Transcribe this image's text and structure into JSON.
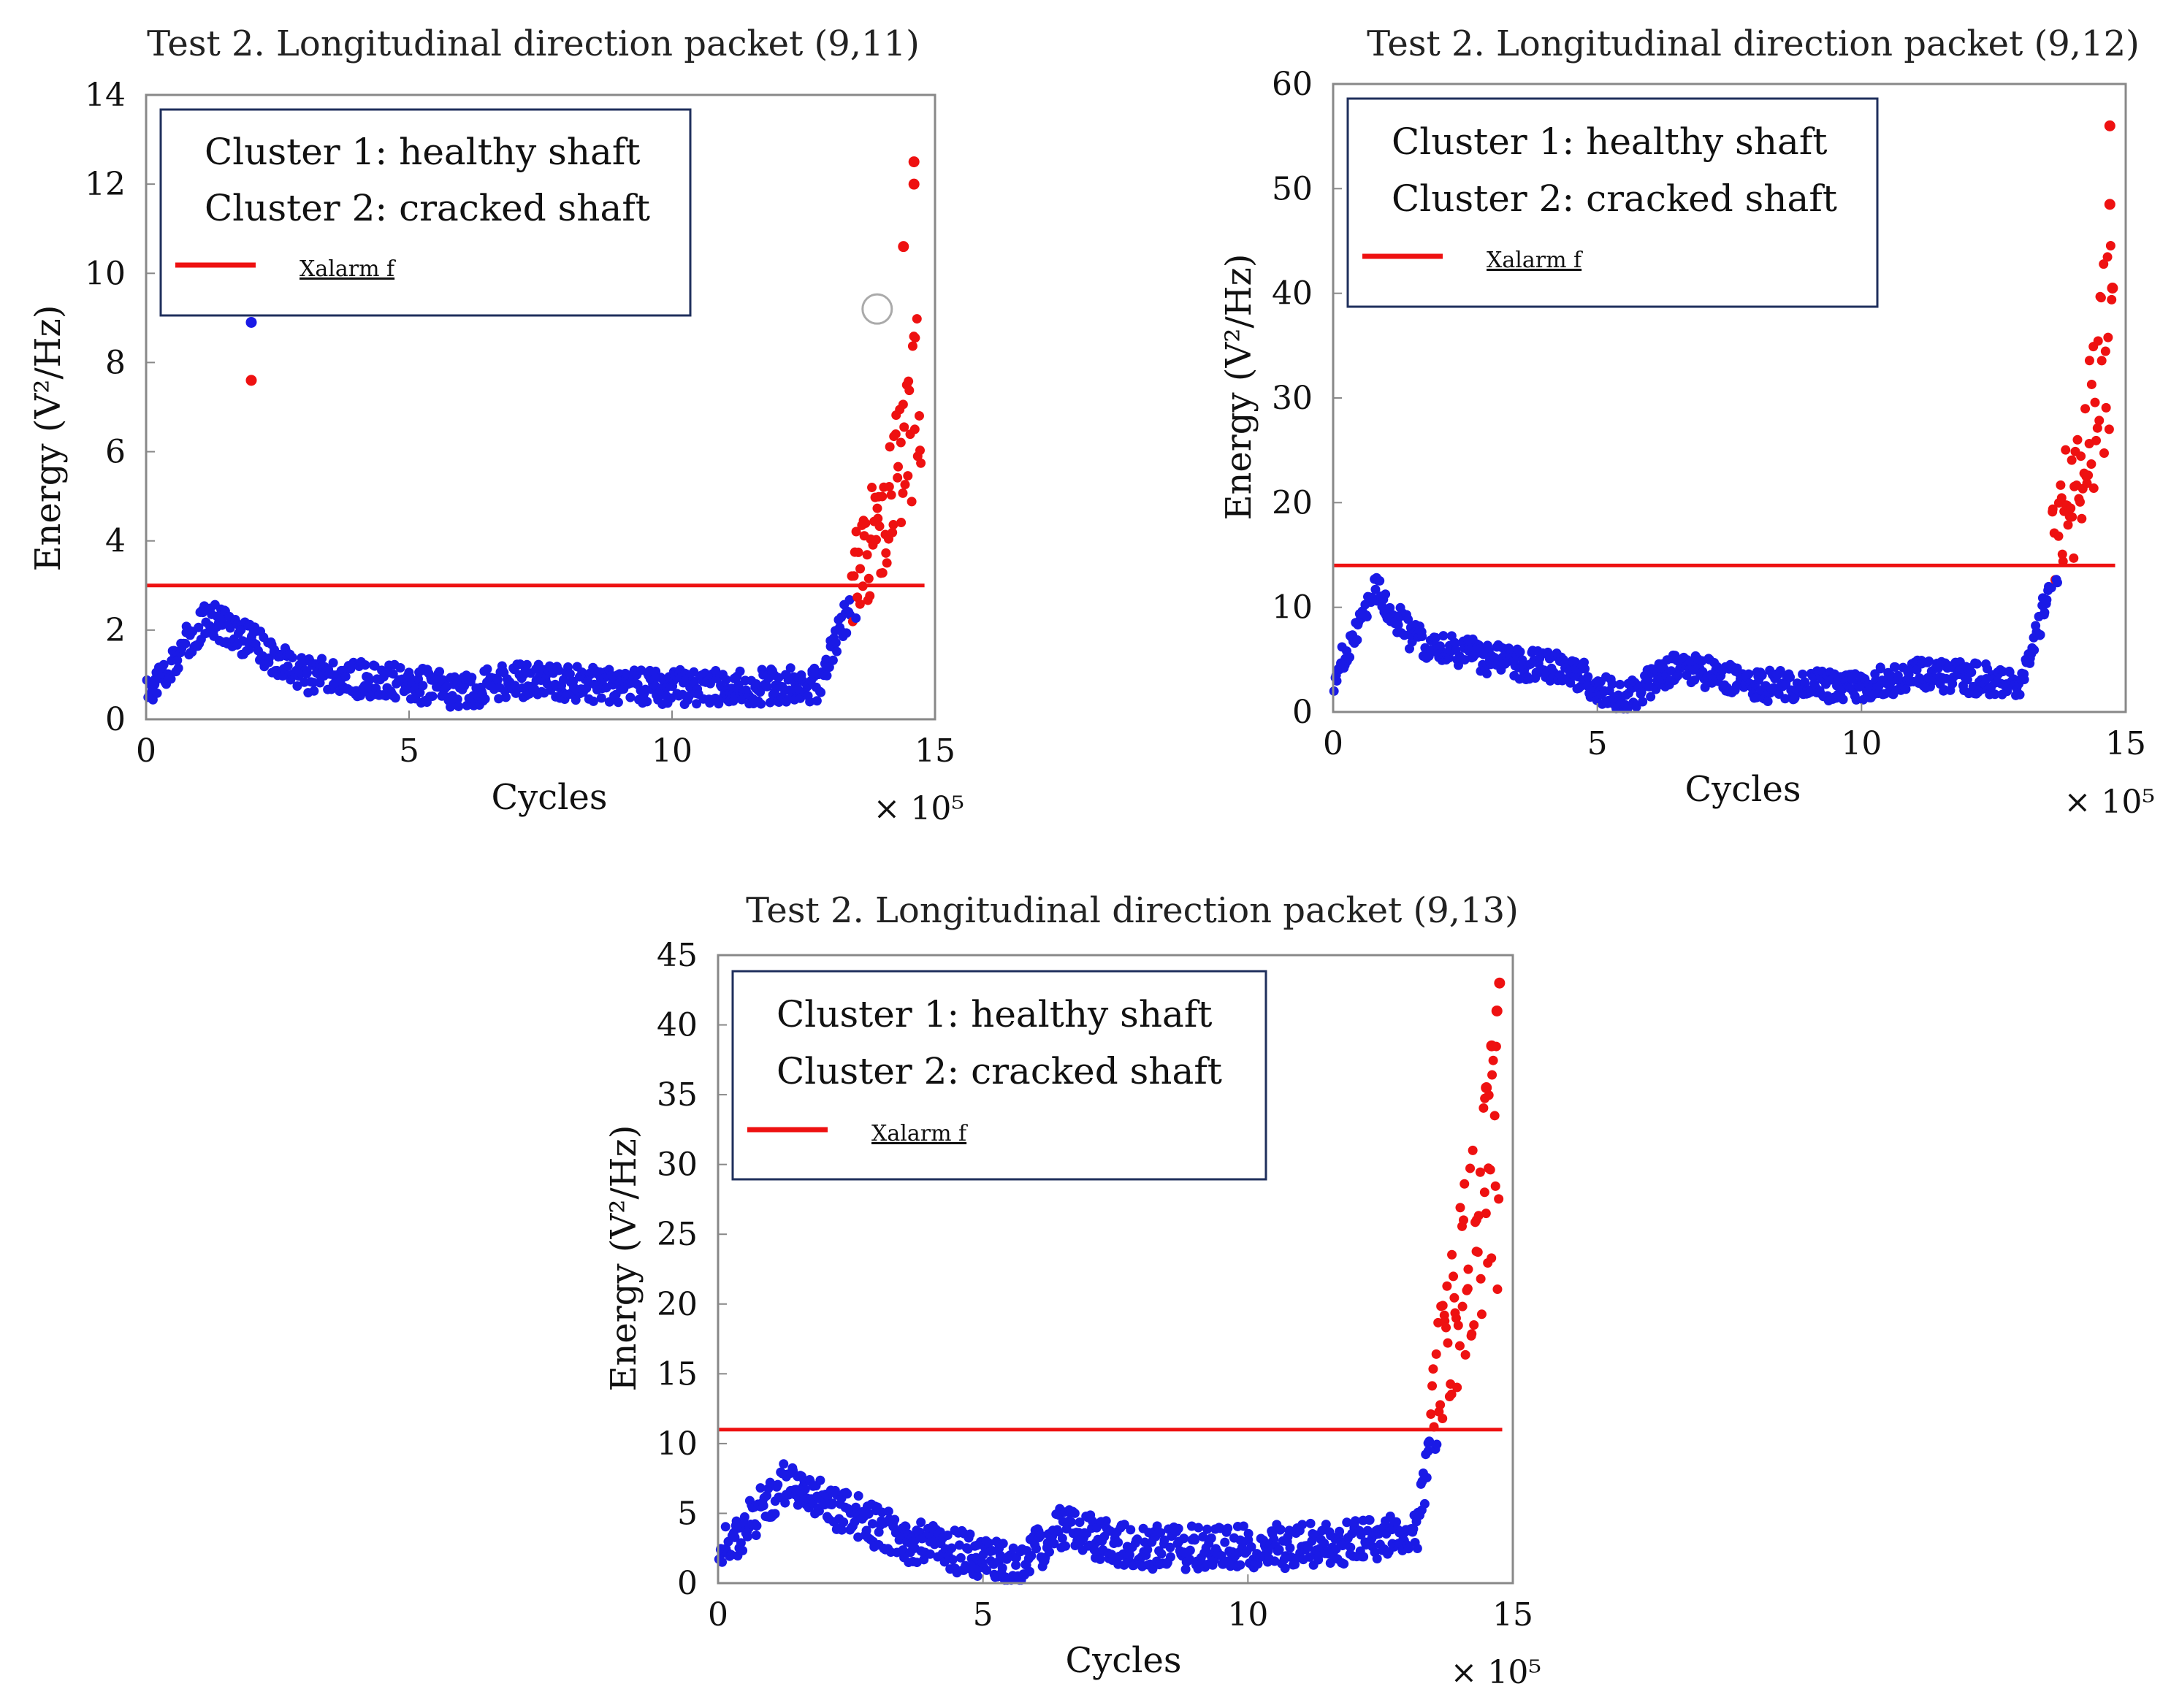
{
  "chart_data": [
    {
      "type": "scatter",
      "title": "Test 2. Longitudinal direction packet (9,11)",
      "xlabel": "Cycles",
      "ylabel": "Energy (V²/Hz)",
      "x_multiplier": "× 10⁵",
      "xlim": [
        0,
        15
      ],
      "ylim": [
        0,
        14
      ],
      "xticks": [
        "0",
        "5",
        "10",
        "15"
      ],
      "yticks": [
        "0",
        "2",
        "4",
        "6",
        "8",
        "10",
        "12",
        "14"
      ],
      "legend": {
        "placement": "top-left",
        "entries": [
          "Cluster 1: healthy shaft",
          "Cluster 2: cracked shaft",
          "Xalarm f"
        ]
      },
      "alarm_threshold": 3.0,
      "alarm_color": "#ee1111",
      "profile": [
        [
          0,
          0.6
        ],
        [
          1.2,
          2.3
        ],
        [
          3,
          1.0
        ],
        [
          5,
          0.8
        ],
        [
          6,
          0.6
        ],
        [
          7,
          0.9
        ],
        [
          9,
          0.75
        ],
        [
          11,
          0.7
        ],
        [
          12.8,
          0.8
        ],
        [
          13.2,
          2.0
        ],
        [
          13.6,
          3.0
        ],
        [
          14.2,
          4.5
        ],
        [
          14.7,
          6.5
        ]
      ],
      "noise": 0.4,
      "crack_start": 13.4,
      "highlights": [
        {
          "x": 2.0,
          "y": 8.9,
          "series": "healthy"
        },
        {
          "x": 2.0,
          "y": 7.6,
          "series": "cracked"
        },
        {
          "x": 14.6,
          "y": 12.5,
          "series": "cracked"
        },
        {
          "x": 14.6,
          "y": 12.0,
          "series": "cracked"
        },
        {
          "x": 14.4,
          "y": 10.6,
          "series": "cracked"
        }
      ],
      "outlier_marker": {
        "x": 13.9,
        "y": 9.2
      },
      "series": [
        {
          "name": "Cluster 1: healthy shaft",
          "color": "#1a1ae6"
        },
        {
          "name": "Cluster 2: cracked shaft",
          "color": "#ee1111"
        }
      ]
    },
    {
      "type": "scatter",
      "title": "Test 2. Longitudinal direction packet (9,12)",
      "xlabel": "Cycles",
      "ylabel": "Energy (V²/Hz)",
      "x_multiplier": "× 10⁵",
      "xlim": [
        0,
        15
      ],
      "ylim": [
        0,
        60
      ],
      "xticks": [
        "0",
        "5",
        "10",
        "15"
      ],
      "yticks": [
        "0",
        "10",
        "20",
        "30",
        "40",
        "50",
        "60"
      ],
      "legend": {
        "placement": "top-left",
        "entries": [
          "Cluster 1: healthy shaft",
          "Cluster 2: cracked shaft",
          "Xalarm f"
        ]
      },
      "alarm_threshold": 14,
      "alarm_color": "#ee1111",
      "profile": [
        [
          0,
          3
        ],
        [
          0.8,
          12
        ],
        [
          1.5,
          7
        ],
        [
          3,
          5
        ],
        [
          4.5,
          4
        ],
        [
          5.5,
          1
        ],
        [
          6.5,
          4.5
        ],
        [
          8,
          2.5
        ],
        [
          10,
          2.5
        ],
        [
          11,
          3.5
        ],
        [
          13,
          3
        ],
        [
          13.4,
          9
        ],
        [
          13.7,
          15
        ],
        [
          14.2,
          20
        ],
        [
          14.7,
          30
        ]
      ],
      "noise": 1.5,
      "crack_start": 13.6,
      "highlights": [
        {
          "x": 14.7,
          "y": 56,
          "series": "cracked"
        },
        {
          "x": 14.7,
          "y": 48.5,
          "series": "cracked"
        },
        {
          "x": 14.75,
          "y": 40.5,
          "series": "cracked"
        }
      ],
      "series": [
        {
          "name": "Cluster 1: healthy shaft",
          "color": "#1a1ae6"
        },
        {
          "name": "Cluster 2: cracked shaft",
          "color": "#ee1111"
        }
      ]
    },
    {
      "type": "scatter",
      "title": "Test 2. Longitudinal direction packet (9,13)",
      "xlabel": "Cycles",
      "ylabel": "Energy (V²/Hz)",
      "x_multiplier": "× 10⁵",
      "xlim": [
        0,
        15
      ],
      "ylim": [
        0,
        45
      ],
      "xticks": [
        "0",
        "5",
        "10",
        "15"
      ],
      "yticks": [
        "0",
        "5",
        "10",
        "15",
        "20",
        "25",
        "30",
        "35",
        "40",
        "45"
      ],
      "legend": {
        "placement": "top-left",
        "entries": [
          "Cluster 1: healthy shaft",
          "Cluster 2: cracked shaft",
          "Xalarm f"
        ]
      },
      "alarm_threshold": 11,
      "alarm_color": "#ee1111",
      "profile": [
        [
          0,
          2
        ],
        [
          1.2,
          7
        ],
        [
          2.5,
          5
        ],
        [
          3.5,
          3
        ],
        [
          5,
          2
        ],
        [
          5.6,
          1
        ],
        [
          6.5,
          4
        ],
        [
          8,
          2.5
        ],
        [
          10,
          2.5
        ],
        [
          12.5,
          3
        ],
        [
          13.2,
          4
        ],
        [
          13.5,
          11
        ],
        [
          14.2,
          20
        ],
        [
          14.7,
          26
        ]
      ],
      "noise": 1.6,
      "crack_start": 13.45,
      "highlights": [
        {
          "x": 14.75,
          "y": 43,
          "series": "cracked"
        },
        {
          "x": 14.7,
          "y": 41,
          "series": "cracked"
        },
        {
          "x": 14.6,
          "y": 38.5,
          "series": "cracked"
        },
        {
          "x": 14.5,
          "y": 35.5,
          "series": "cracked"
        }
      ],
      "series": [
        {
          "name": "Cluster 1: healthy shaft",
          "color": "#1a1ae6"
        },
        {
          "name": "Cluster 2: cracked shaft",
          "color": "#ee1111"
        }
      ]
    }
  ]
}
